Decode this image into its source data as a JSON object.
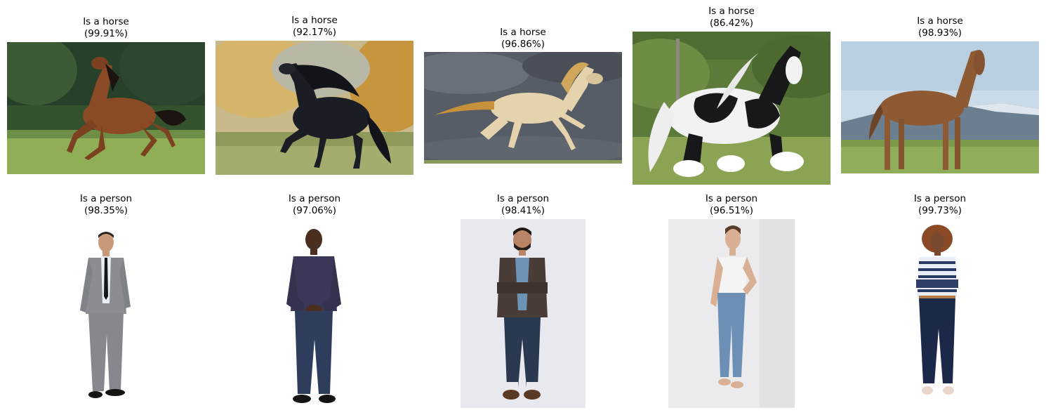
{
  "figure": {
    "rows": [
      {
        "items": [
          {
            "label": "Is a horse",
            "confidence": "(99.91%)",
            "subject": "bay-horse-galloping-in-meadow"
          },
          {
            "label": "Is a horse",
            "confidence": "(92.17%)",
            "subject": "black-friesian-horse-trotting-autumn-field"
          },
          {
            "label": "Is a horse",
            "confidence": "(96.86%)",
            "subject": "golden-akhal-teke-horse-galloping-stormy-sky"
          },
          {
            "label": "Is a horse",
            "confidence": "(86.42%)",
            "subject": "piebald-gypsy-vanner-horse-on-grass"
          },
          {
            "label": "Is a horse",
            "confidence": "(98.93%)",
            "subject": "chestnut-horse-standing-mountain-backdrop"
          }
        ]
      },
      {
        "items": [
          {
            "label": "Is a person",
            "confidence": "(98.35%)",
            "subject": "man-grey-suit-black-tie"
          },
          {
            "label": "Is a person",
            "confidence": "(97.06%)",
            "subject": "man-purple-shirt-jeans"
          },
          {
            "label": "Is a person",
            "confidence": "(98.41%)",
            "subject": "man-brown-blazer-arms-crossed"
          },
          {
            "label": "Is a person",
            "confidence": "(96.51%)",
            "subject": "woman-white-tank-top-jeans-barefoot"
          },
          {
            "label": "Is a person",
            "confidence": "(99.73%)",
            "subject": "woman-striped-shirt-navy-pants"
          }
        ]
      }
    ],
    "colors": {
      "grass": "#7fa04a",
      "forest": "#2f4a2a",
      "sky_storm": "#5a5f66",
      "sky_blue": "#c9dbe8",
      "bay_coat": "#8a4a26",
      "black_coat": "#1a1d24",
      "gold_coat": "#e4d3ad",
      "chestnut_coat": "#8e5a33"
    }
  }
}
